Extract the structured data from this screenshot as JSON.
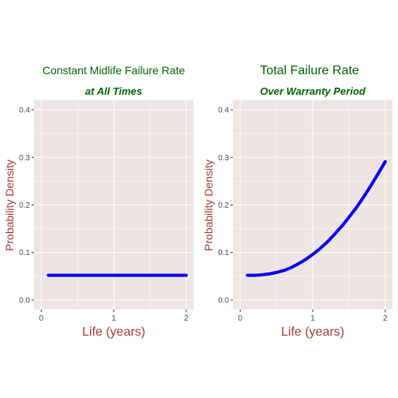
{
  "colors": {
    "panel_background": "#EFE4E4",
    "grid": "#FFFFFF",
    "title": "#006400",
    "axis_title": "#9E3A3A",
    "tick_text": "#4D4D4D",
    "line": "#0000EE"
  },
  "chart_data": [
    {
      "type": "line",
      "title": "Constant Midlife Failure Rate",
      "subtitle": "at All Times",
      "xlabel": "Life (years)",
      "ylabel": "Probability Density",
      "xlim": [
        -0.1,
        2.1
      ],
      "ylim": [
        -0.02,
        0.42
      ],
      "x_ticks": [
        0,
        1,
        2
      ],
      "y_ticks": [
        0.0,
        0.1,
        0.2,
        0.3,
        0.4
      ],
      "x_tick_labels": [
        "0",
        "1",
        "2"
      ],
      "y_tick_labels": [
        "0.0",
        "0.1",
        "0.2",
        "0.3",
        "0.4"
      ],
      "grid": true,
      "series": [
        {
          "x": [
            0.1,
            0.5,
            1.0,
            1.5,
            2.0
          ],
          "y": [
            0.052,
            0.052,
            0.052,
            0.052,
            0.052
          ]
        }
      ]
    },
    {
      "type": "line",
      "title": "Total Failure Rate",
      "subtitle": "Over Warranty Period",
      "xlabel": "Life (years)",
      "ylabel": "Probability Density",
      "xlim": [
        -0.1,
        2.1
      ],
      "ylim": [
        -0.02,
        0.42
      ],
      "x_ticks": [
        0,
        1,
        2
      ],
      "y_ticks": [
        0.0,
        0.1,
        0.2,
        0.3,
        0.4
      ],
      "x_tick_labels": [
        "0",
        "1",
        "2"
      ],
      "y_tick_labels": [
        "0.0",
        "0.1",
        "0.2",
        "0.3",
        "0.4"
      ],
      "grid": true,
      "series": [
        {
          "x": [
            0.1,
            0.2,
            0.3,
            0.4,
            0.5,
            0.6,
            0.7,
            0.8,
            0.9,
            1.0,
            1.1,
            1.2,
            1.3,
            1.4,
            1.5,
            1.6,
            1.7,
            1.8,
            1.9,
            2.0
          ],
          "y": [
            0.052,
            0.052,
            0.053,
            0.055,
            0.058,
            0.062,
            0.068,
            0.076,
            0.085,
            0.096,
            0.108,
            0.122,
            0.138,
            0.155,
            0.174,
            0.194,
            0.216,
            0.24,
            0.265,
            0.291
          ]
        }
      ]
    }
  ]
}
